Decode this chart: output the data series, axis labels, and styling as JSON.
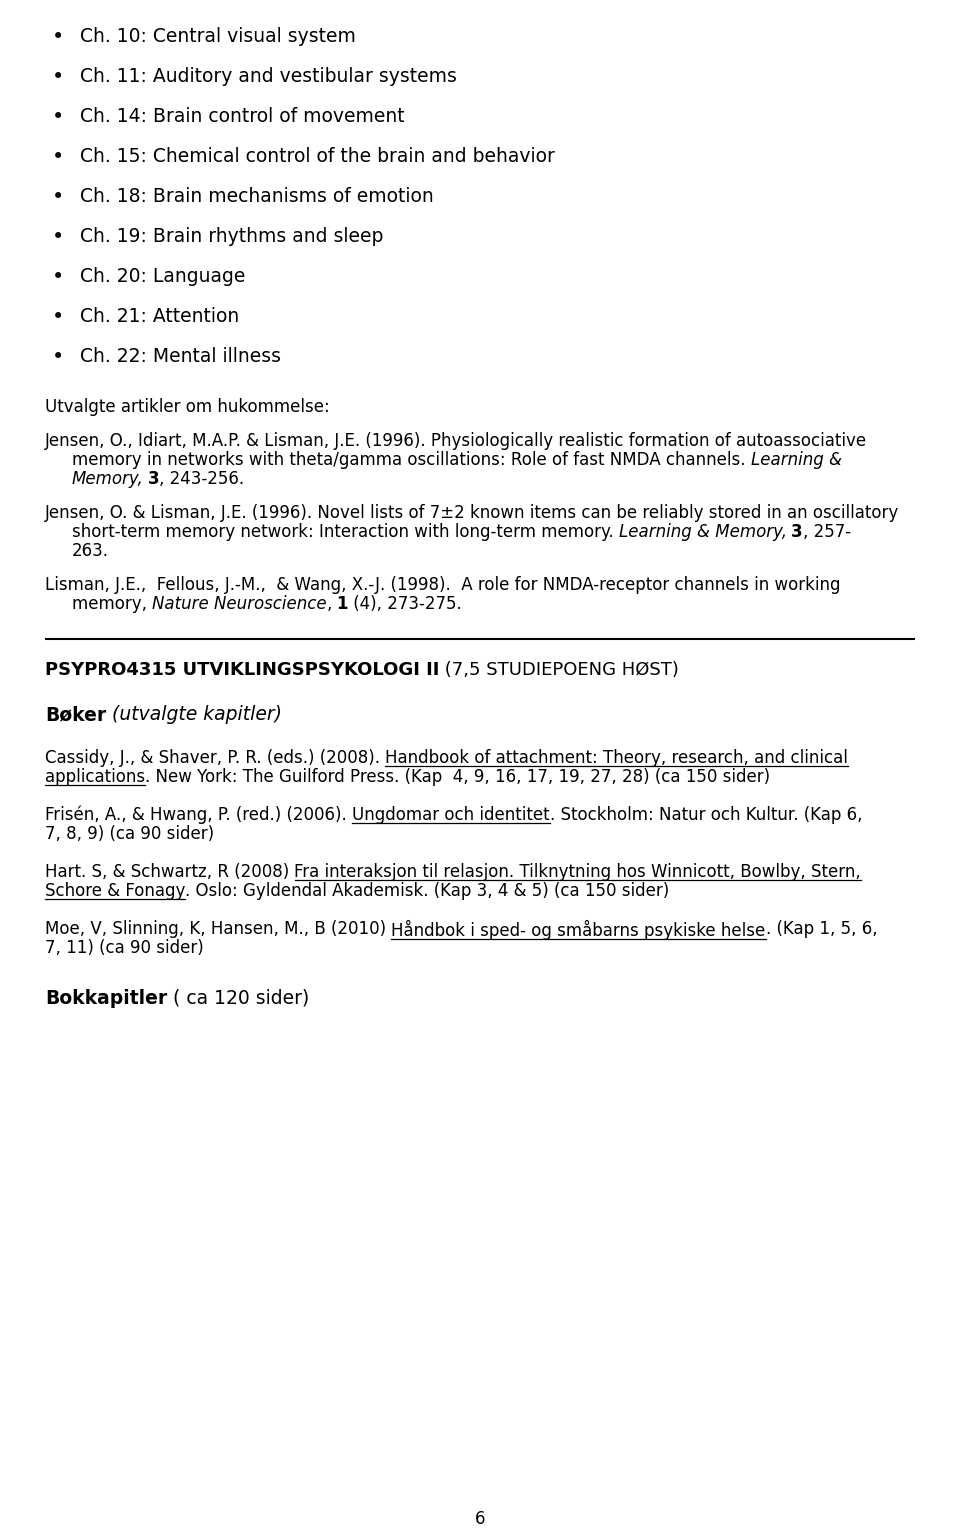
{
  "bg_color": "#ffffff",
  "text_color": "#000000",
  "page_number": "6",
  "bullet_items": [
    "Ch. 10: Central visual system",
    "Ch. 11: Auditory and vestibular systems",
    "Ch. 14: Brain control of movement",
    "Ch. 15: Chemical control of the brain and behavior",
    "Ch. 18: Brain mechanisms of emotion",
    "Ch. 19: Brain rhythms and sleep",
    "Ch. 20: Language",
    "Ch. 21: Attention",
    "Ch. 22: Mental illness"
  ],
  "utvalgte_label": "Utvalgte artikler om hukommelse:",
  "ref1_line1": "Jensen, O., Idiart, M.A.P. & Lisman, J.E. (1996). Physiologically realistic formation of autoassociative",
  "ref1_line2_plain": "memory in networks with theta/gamma oscillations: Role of fast NMDA channels. ",
  "ref1_line2_italic": "Learning & Memory",
  "ref1_line3_bold": "3",
  "ref1_line3_plain": ", 243-256.",
  "ref2_line1": "Jensen, O. & Lisman, J.E. (1996). Novel lists of 7±2 known items can be reliably stored in an oscillatory",
  "ref2_line2_plain": "short-term memory network: Interaction with long-term memory. ",
  "ref2_line2_italic": "Learning & Memory",
  "ref2_line2_bold": "3",
  "ref2_line2_end": ", 257-",
  "ref2_line3": "263.",
  "ref3_line1": "Lisman, J.E.,  Fellous, J.-M.,  & Wang, X.-J. (1998).  A role for NMDA-receptor channels in working",
  "ref3_line2_plain1": "memory, ",
  "ref3_line2_italic": "Nature Neuroscience",
  "ref3_line2_bold": "1",
  "ref3_line2_end": " (4), 273-275.",
  "section2_bold": "PSYPRO4315 UTVIKLINGSPSYKOLOGI II",
  "section2_plain": " (7,5 STUDIEPOENG HØST)",
  "books_bold": "Bøker",
  "books_italic": " (utvalgte kapitler)",
  "cassidy_plain1": "Cassidy, J., & Shaver, P. R. (eds.) (2008). ",
  "cassidy_underline_line1": "Handbook of attachment: Theory, research, and clinical",
  "cassidy_underline_line2": "applications",
  "cassidy_plain2": ". New York: The Guilford Press. (Kap  4, 9, 16, 17, 19, 27, 28) (ca 150 sider)",
  "frisen_plain1": "Frisén, A., & Hwang, P. (red.) (2006). ",
  "frisen_underline": "Ungdomar och identitet",
  "frisen_plain2": ". Stockholm: Natur och Kultur. (Kap 6,",
  "frisen_plain3": "7, 8, 9) (ca 90 sider)",
  "hart_plain1": "Hart. S, & Schwartz, R (2008) ",
  "hart_underline_line1": "Fra interaksjon til relasjon. Tilknytning hos Winnicott, Bowlby, Stern,",
  "hart_underline_line2": "Schore & Fonagy",
  "hart_plain2": ". Oslo: Gyldendal Akademisk. (Kap 3, 4 & 5) (ca 150 sider)",
  "moe_plain1": "Moe, V, Slinning, K, Hansen, M., B (2010) ",
  "moe_underline": "Håndbok i sped- og småbarns psykiske helse",
  "moe_plain2": ". (Kap 1, 5, 6,",
  "moe_plain3": "7, 11) (ca 90 sider)",
  "bokkapitler_bold": "Bokkapitler",
  "bokkapitler_plain": " ( ca 120 sider)"
}
